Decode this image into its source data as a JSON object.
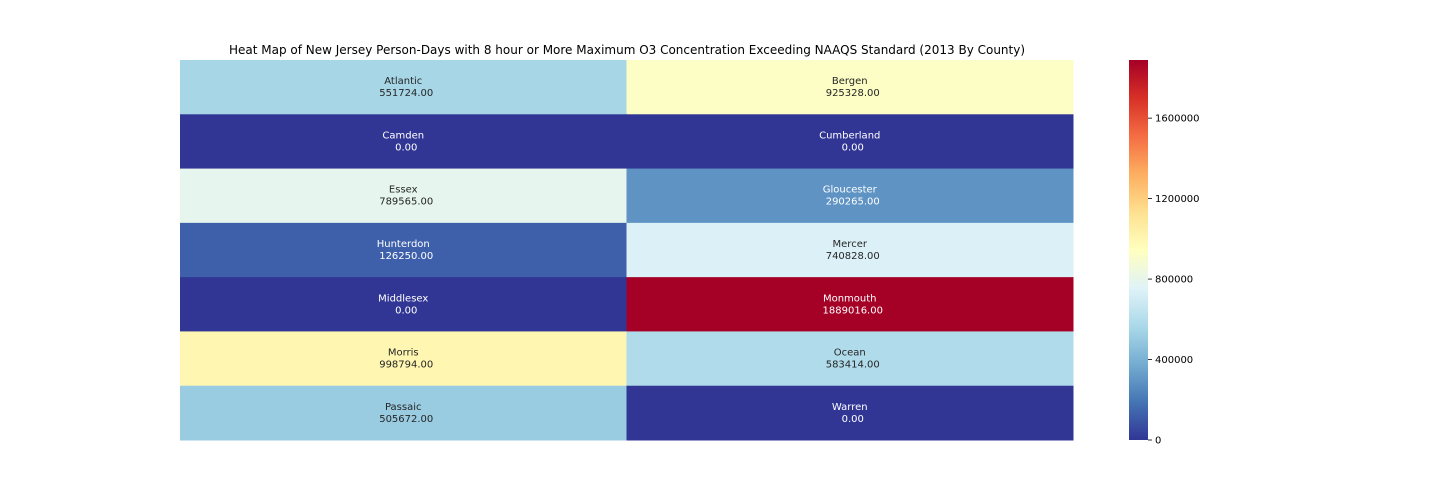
{
  "chart_data": {
    "type": "heatmap",
    "title": "Heat Map of New Jersey Person-Days with 8 hour or More Maximum O3 Concentration Exceeding NAAQS Standard (2013 By County)",
    "xlabel": "",
    "ylabel": "",
    "columns": 2,
    "rows": 7,
    "cells": [
      {
        "county": "Atlantic",
        "value": 551724.0,
        "value_label": "551724.00"
      },
      {
        "county": "Bergen",
        "value": 925328.0,
        "value_label": "925328.00"
      },
      {
        "county": "Camden",
        "value": 0.0,
        "value_label": "0.00"
      },
      {
        "county": "Cumberland",
        "value": 0.0,
        "value_label": "0.00"
      },
      {
        "county": "Essex",
        "value": 789565.0,
        "value_label": "789565.00"
      },
      {
        "county": "Gloucester",
        "value": 290265.0,
        "value_label": "290265.00"
      },
      {
        "county": "Hunterdon",
        "value": 126250.0,
        "value_label": "126250.00"
      },
      {
        "county": "Mercer",
        "value": 740828.0,
        "value_label": "740828.00"
      },
      {
        "county": "Middlesex",
        "value": 0.0,
        "value_label": "0.00"
      },
      {
        "county": "Monmouth",
        "value": 1889016.0,
        "value_label": "1889016.00"
      },
      {
        "county": "Morris",
        "value": 998794.0,
        "value_label": "998794.00"
      },
      {
        "county": "Ocean",
        "value": 583414.0,
        "value_label": "583414.00"
      },
      {
        "county": "Passaic",
        "value": 505672.0,
        "value_label": "505672.00"
      },
      {
        "county": "Warren",
        "value": 0.0,
        "value_label": "0.00"
      }
    ],
    "colormap": "RdYlBu_r",
    "colorbar": {
      "range": [
        0,
        1889016
      ],
      "ticks": [
        0,
        400000,
        800000,
        1200000,
        1600000
      ],
      "tick_labels": [
        "0",
        "400000",
        "800000",
        "1200000",
        "1600000"
      ]
    },
    "grid": false,
    "legend": "colorbar-right"
  }
}
